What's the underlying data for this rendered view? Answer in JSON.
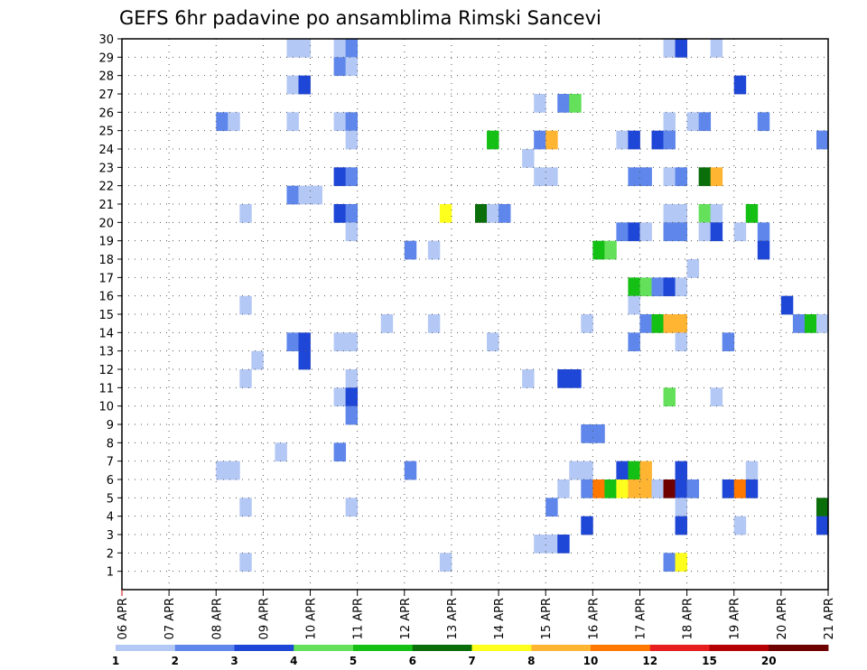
{
  "chart_data": {
    "type": "heatmap",
    "title": "GEFS 6hr padavine po ansamblima Rimski Sancevi",
    "xlabel": "",
    "ylabel": "",
    "x_tick_labels": [
      "06 APR",
      "07 APR",
      "08 APR",
      "09 APR",
      "10 APR",
      "11 APR",
      "12 APR",
      "13 APR",
      "14 APR",
      "15 APR",
      "16 APR",
      "17 APR",
      "18 APR",
      "19 APR",
      "20 APR",
      "21 APR"
    ],
    "y_tick_labels": [
      "1",
      "2",
      "3",
      "4",
      "5",
      "6",
      "7",
      "8",
      "9",
      "10",
      "11",
      "12",
      "13",
      "14",
      "15",
      "16",
      "17",
      "18",
      "19",
      "20",
      "21",
      "22",
      "23",
      "24",
      "25",
      "26",
      "27",
      "28",
      "29",
      "30"
    ],
    "x_range": [
      "06 APR 00z",
      "21 APR 00z"
    ],
    "time_step_hours": 6,
    "y_range": [
      1,
      30
    ],
    "grid": "dotted",
    "legend": {
      "placement": "bottom",
      "labels": [
        "1",
        "2",
        "3",
        "4",
        "5",
        "6",
        "7",
        "8",
        "10",
        "12",
        "15",
        "20"
      ],
      "colors": [
        "#b4c8f5",
        "#5f87eb",
        "#1e46d7",
        "#64e05a",
        "#14c014",
        "#0a6e0a",
        "#ffff1e",
        "#ffb432",
        "#ff7800",
        "#e61e1e",
        "#b40000",
        "#6e0000"
      ]
    },
    "cells": [
      {
        "m": 30,
        "t": "09 APR 12z",
        "v": 1
      },
      {
        "m": 30,
        "t": "09 APR 18z",
        "v": 1
      },
      {
        "m": 30,
        "t": "10 APR 12z",
        "v": 1
      },
      {
        "m": 30,
        "t": "10 APR 18z",
        "v": 2
      },
      {
        "m": 30,
        "t": "17 APR 12z",
        "v": 1
      },
      {
        "m": 30,
        "t": "17 APR 18z",
        "v": 3
      },
      {
        "m": 30,
        "t": "18 APR 12z",
        "v": 1
      },
      {
        "m": 29,
        "t": "10 APR 12z",
        "v": 2
      },
      {
        "m": 29,
        "t": "10 APR 18z",
        "v": 1
      },
      {
        "m": 28,
        "t": "09 APR 12z",
        "v": 1
      },
      {
        "m": 28,
        "t": "09 APR 18z",
        "v": 3
      },
      {
        "m": 28,
        "t": "19 APR 00z",
        "v": 3
      },
      {
        "m": 27,
        "t": "14 APR 18z",
        "v": 1
      },
      {
        "m": 27,
        "t": "15 APR 06z",
        "v": 2
      },
      {
        "m": 27,
        "t": "15 APR 12z",
        "v": 4
      },
      {
        "m": 26,
        "t": "08 APR 00z",
        "v": 2
      },
      {
        "m": 26,
        "t": "08 APR 06z",
        "v": 1
      },
      {
        "m": 26,
        "t": "09 APR 12z",
        "v": 1
      },
      {
        "m": 26,
        "t": "10 APR 12z",
        "v": 1
      },
      {
        "m": 26,
        "t": "10 APR 18z",
        "v": 2
      },
      {
        "m": 26,
        "t": "17 APR 12z",
        "v": 1
      },
      {
        "m": 26,
        "t": "18 APR 00z",
        "v": 1
      },
      {
        "m": 26,
        "t": "18 APR 06z",
        "v": 2
      },
      {
        "m": 26,
        "t": "19 APR 12z",
        "v": 2
      },
      {
        "m": 25,
        "t": "10 APR 18z",
        "v": 1
      },
      {
        "m": 25,
        "t": "13 APR 18z",
        "v": 5
      },
      {
        "m": 25,
        "t": "14 APR 18z",
        "v": 2
      },
      {
        "m": 25,
        "t": "15 APR 00z",
        "v": 8
      },
      {
        "m": 25,
        "t": "16 APR 12z",
        "v": 1
      },
      {
        "m": 25,
        "t": "16 APR 18z",
        "v": 3
      },
      {
        "m": 25,
        "t": "17 APR 06z",
        "v": 3
      },
      {
        "m": 25,
        "t": "17 APR 12z",
        "v": 2
      },
      {
        "m": 25,
        "t": "20 APR 18z",
        "v": 2
      },
      {
        "m": 24,
        "t": "14 APR 12z",
        "v": 1
      },
      {
        "m": 23,
        "t": "10 APR 12z",
        "v": 3
      },
      {
        "m": 23,
        "t": "10 APR 18z",
        "v": 2
      },
      {
        "m": 23,
        "t": "14 APR 18z",
        "v": 1
      },
      {
        "m": 23,
        "t": "15 APR 00z",
        "v": 1
      },
      {
        "m": 23,
        "t": "16 APR 18z",
        "v": 2
      },
      {
        "m": 23,
        "t": "17 APR 00z",
        "v": 2
      },
      {
        "m": 23,
        "t": "17 APR 12z",
        "v": 1
      },
      {
        "m": 23,
        "t": "17 APR 18z",
        "v": 2
      },
      {
        "m": 23,
        "t": "18 APR 06z",
        "v": 6
      },
      {
        "m": 23,
        "t": "18 APR 12z",
        "v": 8
      },
      {
        "m": 22,
        "t": "09 APR 12z",
        "v": 2
      },
      {
        "m": 22,
        "t": "09 APR 18z",
        "v": 1
      },
      {
        "m": 22,
        "t": "10 APR 00z",
        "v": 1
      },
      {
        "m": 21,
        "t": "08 APR 12z",
        "v": 1
      },
      {
        "m": 21,
        "t": "10 APR 12z",
        "v": 3
      },
      {
        "m": 21,
        "t": "10 APR 18z",
        "v": 2
      },
      {
        "m": 21,
        "t": "12 APR 18z",
        "v": 7
      },
      {
        "m": 21,
        "t": "13 APR 12z",
        "v": 6
      },
      {
        "m": 21,
        "t": "13 APR 18z",
        "v": 1
      },
      {
        "m": 21,
        "t": "14 APR 00z",
        "v": 2
      },
      {
        "m": 21,
        "t": "17 APR 12z",
        "v": 1
      },
      {
        "m": 21,
        "t": "17 APR 18z",
        "v": 1
      },
      {
        "m": 21,
        "t": "18 APR 06z",
        "v": 4
      },
      {
        "m": 21,
        "t": "18 APR 12z",
        "v": 1
      },
      {
        "m": 21,
        "t": "19 APR 06z",
        "v": 5
      },
      {
        "m": 20,
        "t": "10 APR 18z",
        "v": 1
      },
      {
        "m": 20,
        "t": "16 APR 12z",
        "v": 2
      },
      {
        "m": 20,
        "t": "16 APR 18z",
        "v": 3
      },
      {
        "m": 20,
        "t": "17 APR 00z",
        "v": 1
      },
      {
        "m": 20,
        "t": "17 APR 12z",
        "v": 2
      },
      {
        "m": 20,
        "t": "17 APR 18z",
        "v": 2
      },
      {
        "m": 20,
        "t": "18 APR 06z",
        "v": 1
      },
      {
        "m": 20,
        "t": "18 APR 12z",
        "v": 3
      },
      {
        "m": 20,
        "t": "19 APR 00z",
        "v": 1
      },
      {
        "m": 20,
        "t": "19 APR 12z",
        "v": 2
      },
      {
        "m": 19,
        "t": "12 APR 00z",
        "v": 2
      },
      {
        "m": 19,
        "t": "12 APR 12z",
        "v": 1
      },
      {
        "m": 19,
        "t": "16 APR 00z",
        "v": 5
      },
      {
        "m": 19,
        "t": "16 APR 06z",
        "v": 4
      },
      {
        "m": 19,
        "t": "19 APR 12z",
        "v": 3
      },
      {
        "m": 18,
        "t": "18 APR 00z",
        "v": 1
      },
      {
        "m": 17,
        "t": "16 APR 18z",
        "v": 5
      },
      {
        "m": 17,
        "t": "17 APR 00z",
        "v": 4
      },
      {
        "m": 17,
        "t": "17 APR 06z",
        "v": 2
      },
      {
        "m": 17,
        "t": "17 APR 12z",
        "v": 3
      },
      {
        "m": 17,
        "t": "17 APR 18z",
        "v": 1
      },
      {
        "m": 16,
        "t": "08 APR 12z",
        "v": 1
      },
      {
        "m": 16,
        "t": "16 APR 18z",
        "v": 1
      },
      {
        "m": 16,
        "t": "20 APR 00z",
        "v": 3
      },
      {
        "m": 15,
        "t": "11 APR 12z",
        "v": 1
      },
      {
        "m": 15,
        "t": "12 APR 12z",
        "v": 1
      },
      {
        "m": 15,
        "t": "15 APR 18z",
        "v": 1
      },
      {
        "m": 15,
        "t": "17 APR 00z",
        "v": 2
      },
      {
        "m": 15,
        "t": "17 APR 06z",
        "v": 5
      },
      {
        "m": 15,
        "t": "17 APR 12z",
        "v": 8
      },
      {
        "m": 15,
        "t": "17 APR 18z",
        "v": 8
      },
      {
        "m": 15,
        "t": "20 APR 06z",
        "v": 2
      },
      {
        "m": 15,
        "t": "20 APR 12z",
        "v": 5
      },
      {
        "m": 15,
        "t": "20 APR 18z",
        "v": 1
      },
      {
        "m": 14,
        "t": "09 APR 12z",
        "v": 2
      },
      {
        "m": 14,
        "t": "09 APR 18z",
        "v": 3
      },
      {
        "m": 14,
        "t": "10 APR 12z",
        "v": 1
      },
      {
        "m": 14,
        "t": "10 APR 18z",
        "v": 1
      },
      {
        "m": 14,
        "t": "13 APR 18z",
        "v": 1
      },
      {
        "m": 14,
        "t": "16 APR 18z",
        "v": 2
      },
      {
        "m": 14,
        "t": "17 APR 18z",
        "v": 1
      },
      {
        "m": 14,
        "t": "18 APR 18z",
        "v": 2
      },
      {
        "m": 13,
        "t": "08 APR 18z",
        "v": 1
      },
      {
        "m": 13,
        "t": "09 APR 18z",
        "v": 3
      },
      {
        "m": 12,
        "t": "08 APR 12z",
        "v": 1
      },
      {
        "m": 12,
        "t": "10 APR 18z",
        "v": 1
      },
      {
        "m": 12,
        "t": "14 APR 12z",
        "v": 1
      },
      {
        "m": 12,
        "t": "15 APR 06z",
        "v": 3
      },
      {
        "m": 12,
        "t": "15 APR 12z",
        "v": 3
      },
      {
        "m": 11,
        "t": "10 APR 12z",
        "v": 1
      },
      {
        "m": 11,
        "t": "10 APR 18z",
        "v": 3
      },
      {
        "m": 11,
        "t": "17 APR 12z",
        "v": 4
      },
      {
        "m": 11,
        "t": "18 APR 12z",
        "v": 1
      },
      {
        "m": 10,
        "t": "10 APR 18z",
        "v": 2
      },
      {
        "m": 9,
        "t": "15 APR 18z",
        "v": 2
      },
      {
        "m": 9,
        "t": "16 APR 00z",
        "v": 2
      },
      {
        "m": 8,
        "t": "09 APR 06z",
        "v": 1
      },
      {
        "m": 8,
        "t": "10 APR 12z",
        "v": 2
      },
      {
        "m": 7,
        "t": "08 APR 00z",
        "v": 1
      },
      {
        "m": 7,
        "t": "08 APR 06z",
        "v": 1
      },
      {
        "m": 7,
        "t": "12 APR 00z",
        "v": 2
      },
      {
        "m": 7,
        "t": "15 APR 12z",
        "v": 1
      },
      {
        "m": 7,
        "t": "15 APR 18z",
        "v": 1
      },
      {
        "m": 7,
        "t": "16 APR 12z",
        "v": 3
      },
      {
        "m": 7,
        "t": "16 APR 18z",
        "v": 5
      },
      {
        "m": 7,
        "t": "17 APR 00z",
        "v": 8
      },
      {
        "m": 7,
        "t": "17 APR 18z",
        "v": 3
      },
      {
        "m": 7,
        "t": "19 APR 06z",
        "v": 1
      },
      {
        "m": 6,
        "t": "15 APR 06z",
        "v": 1
      },
      {
        "m": 6,
        "t": "15 APR 18z",
        "v": 2
      },
      {
        "m": 6,
        "t": "16 APR 00z",
        "v": 10
      },
      {
        "m": 6,
        "t": "16 APR 06z",
        "v": 5
      },
      {
        "m": 6,
        "t": "16 APR 12z",
        "v": 7
      },
      {
        "m": 6,
        "t": "16 APR 18z",
        "v": 8
      },
      {
        "m": 6,
        "t": "17 APR 00z",
        "v": 8
      },
      {
        "m": 6,
        "t": "17 APR 06z",
        "v": 1
      },
      {
        "m": 6,
        "t": "17 APR 12z",
        "v": 20
      },
      {
        "m": 6,
        "t": "17 APR 18z",
        "v": 3
      },
      {
        "m": 6,
        "t": "18 APR 00z",
        "v": 2
      },
      {
        "m": 6,
        "t": "18 APR 18z",
        "v": 3
      },
      {
        "m": 6,
        "t": "19 APR 00z",
        "v": 10
      },
      {
        "m": 6,
        "t": "19 APR 06z",
        "v": 3
      },
      {
        "m": 5,
        "t": "08 APR 12z",
        "v": 1
      },
      {
        "m": 5,
        "t": "10 APR 18z",
        "v": 1
      },
      {
        "m": 5,
        "t": "15 APR 00z",
        "v": 2
      },
      {
        "m": 5,
        "t": "17 APR 18z",
        "v": 1
      },
      {
        "m": 5,
        "t": "20 APR 18z",
        "v": 6
      },
      {
        "m": 4,
        "t": "15 APR 18z",
        "v": 3
      },
      {
        "m": 4,
        "t": "17 APR 18z",
        "v": 3
      },
      {
        "m": 4,
        "t": "19 APR 00z",
        "v": 1
      },
      {
        "m": 4,
        "t": "20 APR 18z",
        "v": 3
      },
      {
        "m": 3,
        "t": "14 APR 18z",
        "v": 1
      },
      {
        "m": 3,
        "t": "15 APR 00z",
        "v": 1
      },
      {
        "m": 3,
        "t": "15 APR 06z",
        "v": 3
      },
      {
        "m": 2,
        "t": "08 APR 12z",
        "v": 1
      },
      {
        "m": 2,
        "t": "12 APR 18z",
        "v": 1
      },
      {
        "m": 2,
        "t": "17 APR 12z",
        "v": 2
      },
      {
        "m": 2,
        "t": "17 APR 18z",
        "v": 7
      }
    ]
  }
}
